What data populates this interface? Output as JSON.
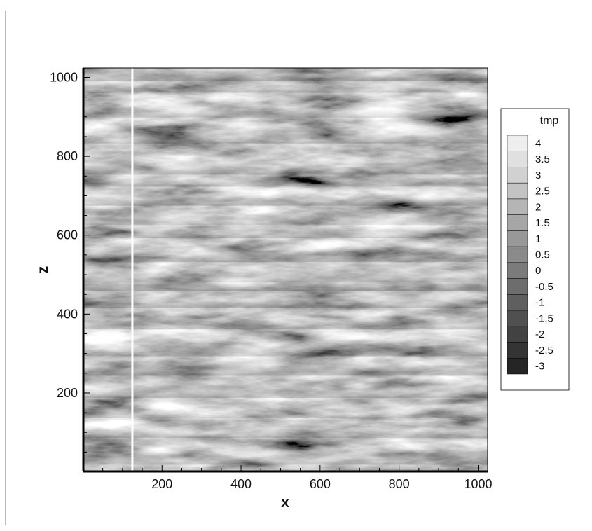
{
  "chart_data": {
    "type": "heatmap",
    "title": "",
    "xlabel": "x",
    "ylabel": "z",
    "xlim": [
      1,
      1024
    ],
    "ylim": [
      1,
      1024
    ],
    "x_ticks": [
      200,
      400,
      600,
      800,
      1000
    ],
    "y_ticks": [
      200,
      400,
      600,
      800,
      1000
    ],
    "colormap": "grayscale",
    "colorbar": {
      "title": "tmp",
      "levels": [
        "4",
        "3.5",
        "3",
        "2.5",
        "2",
        "1.5",
        "1",
        "0.5",
        "0",
        "-0.5",
        "-1",
        "-1.5",
        "-2",
        "-2.5",
        "-3"
      ],
      "min": -3.25,
      "max": 4.25,
      "placement": "right"
    },
    "marker_line": {
      "orientation": "vertical",
      "x": 125,
      "color": "#ffffff"
    },
    "field_mean": 0.3,
    "field_std": 0.9,
    "grid": false
  }
}
